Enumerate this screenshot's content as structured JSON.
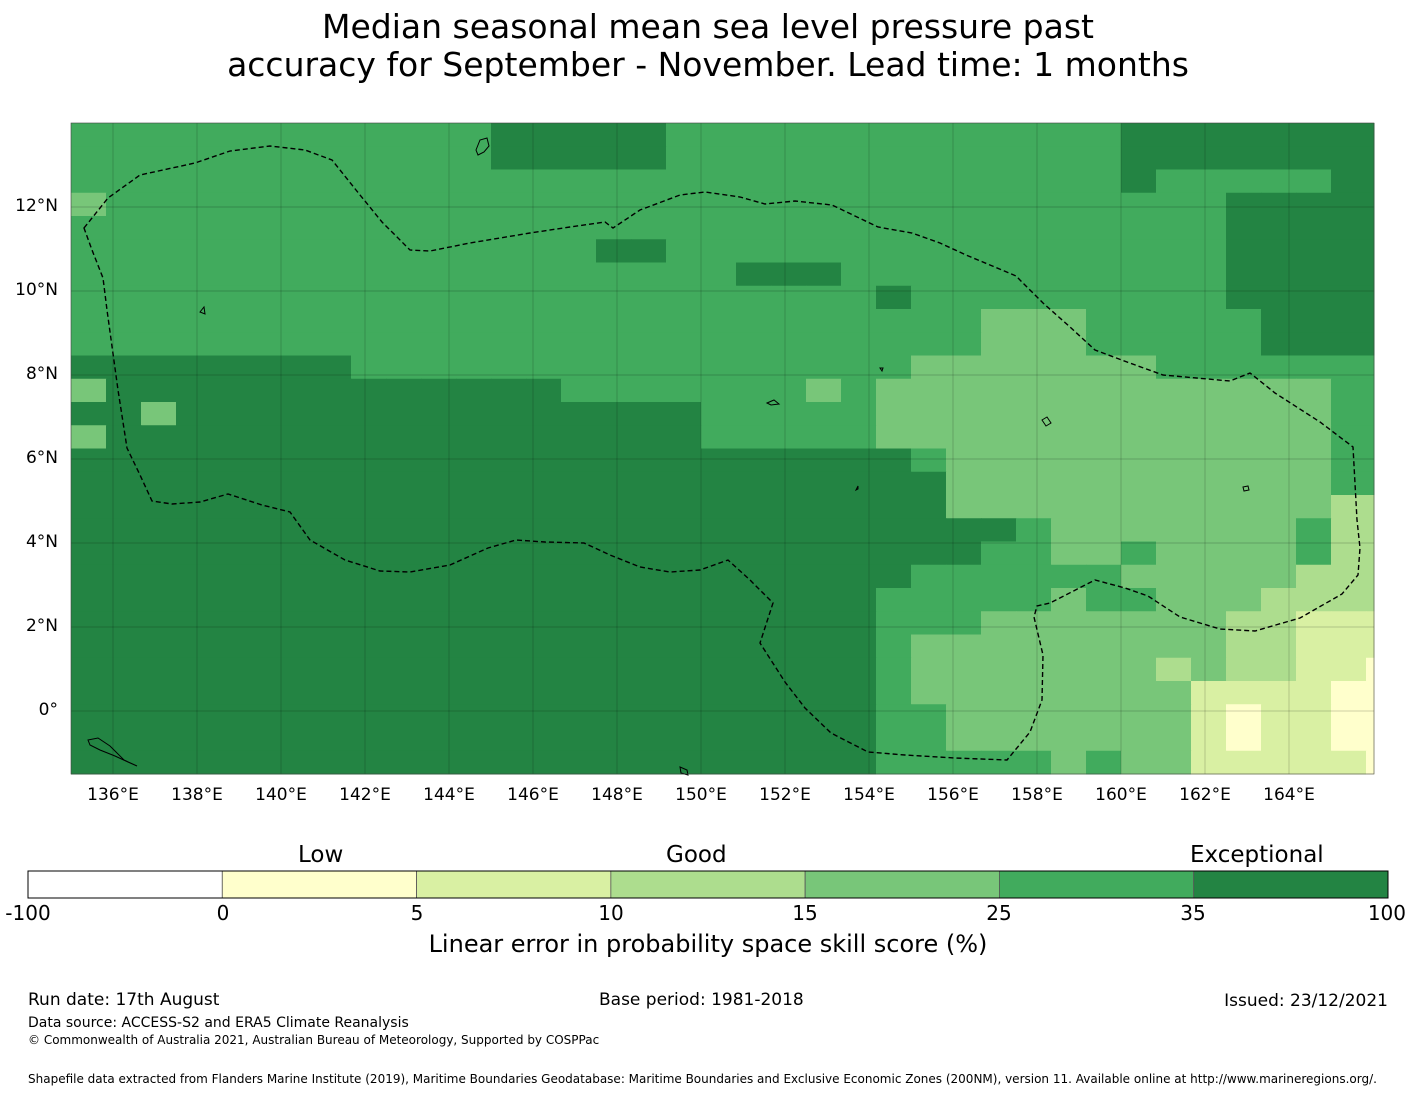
{
  "title": {
    "line1": "Median seasonal mean sea level pressure past",
    "line2": "accuracy for September - November. Lead time: 1 months"
  },
  "map": {
    "lon_labels": [
      "136°E",
      "138°E",
      "140°E",
      "142°E",
      "144°E",
      "146°E",
      "148°E",
      "150°E",
      "152°E",
      "154°E",
      "156°E",
      "158°E",
      "160°E",
      "162°E",
      "164°E"
    ],
    "lat_labels": [
      "12°N",
      "10°N",
      "8°N",
      "6°N",
      "4°N",
      "2°N",
      "0°"
    ],
    "lon_range": [
      135.0,
      166.0
    ],
    "lat_range": [
      -1.5,
      14.0
    ],
    "grid": true
  },
  "colorbar": {
    "categories": [
      "Low",
      "Good",
      "Exceptional"
    ],
    "ticks": [
      "-100",
      "0",
      "5",
      "10",
      "15",
      "25",
      "35",
      "100"
    ],
    "colors": [
      "#ffffff",
      "#ffffcc",
      "#d9f0a3",
      "#addd8e",
      "#78c679",
      "#41ab5d",
      "#238443"
    ],
    "title": "Linear error in probability space skill score (%)"
  },
  "footer": {
    "run_date": "Run date: 17th August",
    "base_period": "Base period: 1981-2018",
    "issued": "Issued: 23/12/2021",
    "data_source": "Data source: ACCESS-S2 and ERA5 Climate Reanalysis",
    "copyright": "© Commonwealth of Australia 2021, Australian Bureau of Meteorology, Supported by COSPPac",
    "shapefile": "Shapefile data extracted from Flanders Marine Institute (2019), Maritime Boundaries Geodatabase: Maritime Boundaries and Exclusive Economic Zones (200NM), version 11. Available online at http://www.marineregions.org/."
  }
}
